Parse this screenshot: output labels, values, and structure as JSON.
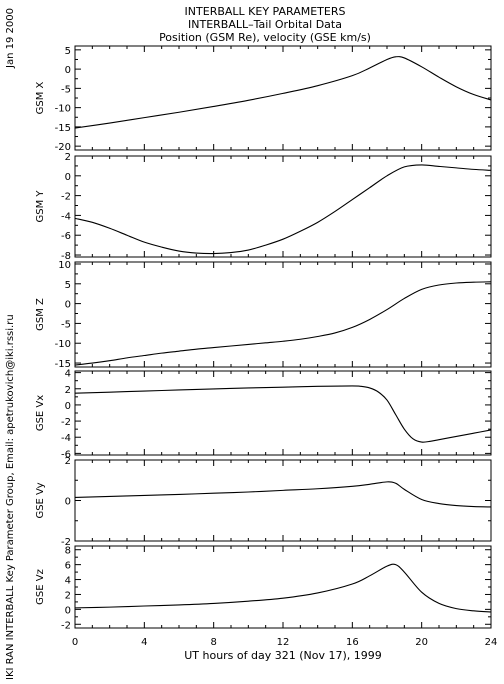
{
  "header": {
    "title_lines": [
      "INTERBALL KEY PARAMETERS",
      "INTERBALL–Tail Orbital Data",
      "Position (GSM Re), velocity (GSE km/s)"
    ]
  },
  "side_text": {
    "date": "Jan 19 2000",
    "credit": "IKI RAN INTERBALL Key Parameter Group, Email: apetrukovich@iki.rssi.ru"
  },
  "chart_data": {
    "type": "line",
    "xlabel": "UT hours of day 321 (Nov 17), 1999",
    "xlim": [
      0,
      24
    ],
    "xticks": [
      0,
      4,
      8,
      12,
      16,
      20,
      24
    ],
    "panels": [
      {
        "ylabel": "GSM X",
        "ylim": [
          -21,
          6
        ],
        "yticks": [
          5,
          0,
          -5,
          -10,
          -15,
          -20
        ],
        "x": [
          0,
          2,
          4,
          6,
          8,
          10,
          12,
          14,
          16,
          17,
          18,
          18.5,
          19,
          20,
          21,
          22,
          23,
          24
        ],
        "y": [
          -15.3,
          -14.0,
          -12.6,
          -11.2,
          -9.7,
          -8.1,
          -6.3,
          -4.3,
          -1.7,
          0.3,
          2.5,
          3.2,
          2.9,
          0.6,
          -2.1,
          -4.6,
          -6.6,
          -8.0
        ]
      },
      {
        "ylabel": "GSM Y",
        "ylim": [
          -8.2,
          2
        ],
        "yticks": [
          2,
          0,
          -2,
          -4,
          -6,
          -8
        ],
        "x": [
          0,
          1,
          2,
          3,
          4,
          5,
          6,
          7,
          8,
          9,
          10,
          11,
          12,
          13,
          14,
          15,
          16,
          17,
          18,
          19,
          20,
          21,
          22,
          23,
          24
        ],
        "y": [
          -4.3,
          -4.7,
          -5.3,
          -6.0,
          -6.7,
          -7.2,
          -7.6,
          -7.8,
          -7.85,
          -7.75,
          -7.5,
          -7.0,
          -6.4,
          -5.6,
          -4.7,
          -3.6,
          -2.4,
          -1.2,
          0.0,
          0.9,
          1.1,
          0.95,
          0.8,
          0.65,
          0.55
        ]
      },
      {
        "ylabel": "GSM Z",
        "ylim": [
          -16,
          10.5
        ],
        "yticks": [
          10,
          5,
          0,
          -5,
          -10,
          -15
        ],
        "x": [
          0,
          1,
          2,
          3,
          4,
          5,
          6,
          7,
          8,
          9,
          10,
          11,
          12,
          13,
          14,
          15,
          16,
          17,
          18,
          19,
          20,
          21,
          22,
          23,
          24
        ],
        "y": [
          -15.5,
          -15.0,
          -14.4,
          -13.7,
          -13.1,
          -12.5,
          -12.0,
          -11.5,
          -11.1,
          -10.7,
          -10.3,
          -9.9,
          -9.5,
          -9.0,
          -8.3,
          -7.4,
          -6.0,
          -4.0,
          -1.5,
          1.3,
          3.6,
          4.7,
          5.2,
          5.4,
          5.5
        ]
      },
      {
        "ylabel": "GSE Vx",
        "ylim": [
          -6.2,
          4.2
        ],
        "yticks": [
          4,
          2,
          0,
          -2,
          -4,
          -6
        ],
        "x": [
          0,
          2,
          4,
          6,
          8,
          10,
          12,
          14,
          16,
          16.5,
          17,
          17.5,
          18,
          18.5,
          19,
          19.5,
          20,
          20.5,
          21,
          22,
          23,
          24
        ],
        "y": [
          1.45,
          1.58,
          1.72,
          1.85,
          1.98,
          2.1,
          2.2,
          2.3,
          2.35,
          2.3,
          2.1,
          1.6,
          0.6,
          -1.2,
          -3.0,
          -4.2,
          -4.6,
          -4.5,
          -4.3,
          -3.9,
          -3.5,
          -3.1
        ]
      },
      {
        "ylabel": "GSE Vy",
        "ylim": [
          -2,
          2
        ],
        "yticks": [
          2,
          0,
          -2
        ],
        "x": [
          0,
          2,
          4,
          6,
          8,
          10,
          12,
          14,
          16,
          17,
          18,
          18.5,
          19,
          20,
          21,
          22,
          23,
          24
        ],
        "y": [
          0.15,
          0.2,
          0.25,
          0.3,
          0.36,
          0.42,
          0.5,
          0.58,
          0.7,
          0.8,
          0.92,
          0.85,
          0.55,
          0.05,
          -0.15,
          -0.25,
          -0.3,
          -0.32
        ]
      },
      {
        "ylabel": "GSE Vz",
        "ylim": [
          -2.5,
          8.5
        ],
        "yticks": [
          8,
          6,
          4,
          2,
          0,
          -2
        ],
        "x": [
          0,
          2,
          4,
          6,
          8,
          10,
          12,
          14,
          16,
          17,
          18,
          18.5,
          19,
          20,
          21,
          22,
          23,
          24
        ],
        "y": [
          0.2,
          0.3,
          0.45,
          0.6,
          0.8,
          1.1,
          1.5,
          2.2,
          3.4,
          4.5,
          5.8,
          6.0,
          5.0,
          2.3,
          0.8,
          0.1,
          -0.2,
          -0.35
        ]
      }
    ]
  }
}
